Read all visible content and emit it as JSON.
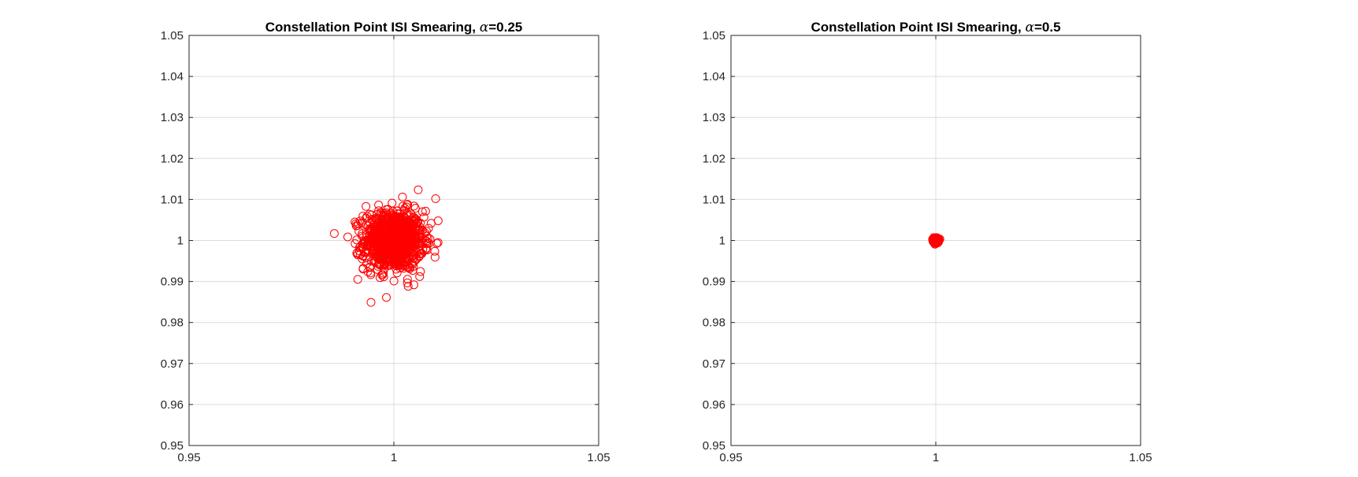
{
  "chart_data": [
    {
      "type": "scatter",
      "title_prefix": "Constellation Point ISI Smearing, ",
      "title_symbol": "α",
      "title_suffix": "=0.25",
      "xlabel": "",
      "ylabel": "",
      "xlim": [
        0.95,
        1.05
      ],
      "ylim": [
        0.95,
        1.05
      ],
      "xticks": [
        "0.95",
        "1",
        "1.05"
      ],
      "yticks": [
        "0.95",
        "0.96",
        "0.97",
        "0.98",
        "0.99",
        "1",
        "1.01",
        "1.02",
        "1.03",
        "1.04",
        "1.05"
      ],
      "grid": true,
      "marker": "circle-open",
      "color": "#ff0000",
      "center": [
        1.0,
        1.0
      ],
      "spread_std": 0.0036,
      "x": [
        0.9905,
        0.9912,
        1.0021,
        1.0102,
        1.0035,
        0.9968,
        0.9923,
        1.0063,
        1.0091,
        0.9932,
        1.0012,
        0.9986,
        1.0054,
        0.9941,
        1.0078,
        0.9958,
        1.0031,
        0.9975,
        1.0008,
        0.9992
      ],
      "y": [
        1.0045,
        0.9905,
        1.0106,
        1.0102,
        0.9888,
        1.0068,
        0.9955,
        0.9912,
        1.0042,
        1.0083,
        1.0012,
        0.9971,
        1.0025,
        0.9934,
        0.9978,
        1.0019,
        1.0061,
        0.9944,
        0.9997,
        1.0005
      ],
      "n_points": 1000
    },
    {
      "type": "scatter",
      "title_prefix": "Constellation Point ISI Smearing, ",
      "title_symbol": "α",
      "title_suffix": "=0.5",
      "xlabel": "",
      "ylabel": "",
      "xlim": [
        0.95,
        1.05
      ],
      "ylim": [
        0.95,
        1.05
      ],
      "xticks": [
        "0.95",
        "1",
        "1.05"
      ],
      "yticks": [
        "0.95",
        "0.96",
        "0.97",
        "0.98",
        "0.99",
        "1",
        "1.01",
        "1.02",
        "1.03",
        "1.04",
        "1.05"
      ],
      "grid": true,
      "marker": "circle-open",
      "color": "#ff0000",
      "center": [
        1.0,
        1.0
      ],
      "spread_std": 0.00025,
      "x": [
        0.9995,
        1.0005,
        0.9998,
        1.0003,
        1.0,
        0.9996,
        1.0004,
        1.0001,
        0.9997,
        1.0002
      ],
      "y": [
        1.0003,
        0.9996,
        1.0005,
        0.9998,
        1.0,
        1.0002,
        0.9997,
        1.0004,
        0.9999,
        1.0001
      ],
      "n_points": 1000
    }
  ]
}
